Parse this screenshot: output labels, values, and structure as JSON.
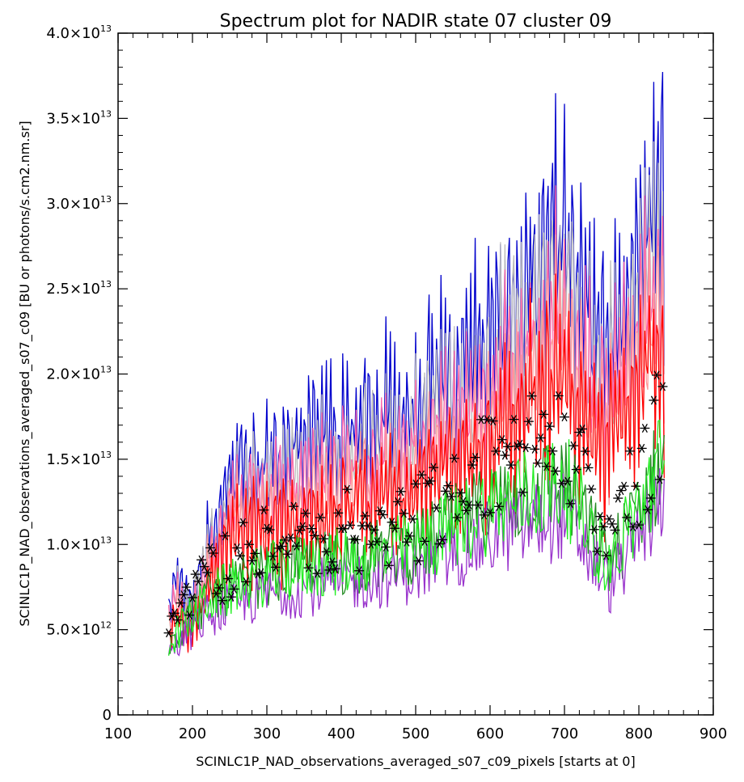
{
  "chart_data": {
    "type": "line",
    "title": "Spectrum plot for NADIR state 07 cluster 09",
    "xlabel": "SCINLC1P_NAD_observations_averaged_s07_c09_pixels [starts at 0]",
    "ylabel": "SCINLC1P_NAD_observations_averaged_s07_c09 [BU or photons/s.cm2.nm.sr]",
    "xlim": [
      100,
      900
    ],
    "ylim": [
      0,
      40000000000000.0
    ],
    "x_ticks": [
      100,
      200,
      300,
      400,
      500,
      600,
      700,
      800,
      900
    ],
    "x_tick_labels": [
      "100",
      "200",
      "300",
      "400",
      "500",
      "600",
      "700",
      "800",
      "900"
    ],
    "y_ticks": [
      0,
      5000000000000.0,
      10000000000000.0,
      15000000000000.0,
      20000000000000.0,
      25000000000000.0,
      30000000000000.0,
      35000000000000.0,
      40000000000000.0
    ],
    "y_tick_labels": [
      {
        "mantissa": "0",
        "exp": ""
      },
      {
        "mantissa": "5.0×10",
        "exp": "12"
      },
      {
        "mantissa": "1.0×10",
        "exp": "13"
      },
      {
        "mantissa": "1.5×10",
        "exp": "13"
      },
      {
        "mantissa": "2.0×10",
        "exp": "13"
      },
      {
        "mantissa": "2.5×10",
        "exp": "13"
      },
      {
        "mantissa": "3.0×10",
        "exp": "13"
      },
      {
        "mantissa": "3.5×10",
        "exp": "13"
      },
      {
        "mantissa": "4.0×10",
        "exp": "13"
      }
    ],
    "x_range_of_data": [
      168,
      835
    ],
    "envelope_x": [
      170,
      180,
      190,
      200,
      210,
      220,
      230,
      250,
      260,
      300,
      350,
      400,
      450,
      500,
      520,
      550,
      600,
      650,
      700,
      720,
      750,
      780,
      800,
      830
    ],
    "envelope_y": [
      8000000000000.0,
      10500000000000.0,
      8000000000000.0,
      9000000000000.0,
      10500000000000.0,
      12500000000000.0,
      15000000000000.0,
      17500000000000.0,
      19000000000000.0,
      19000000000000.0,
      20000000000000.0,
      21000000000000.0,
      22000000000000.0,
      23000000000000.0,
      25000000000000.0,
      25000000000000.0,
      28000000000000.0,
      31500000000000.0,
      36000000000000.0,
      31000000000000.0,
      27000000000000.0,
      30000000000000.0,
      34000000000000.0,
      37500000000000.0
    ],
    "series": [
      {
        "color": "#0000cc",
        "style": "line",
        "scale": 1.0
      },
      {
        "color": "#bbbbbb",
        "style": "line",
        "scale": 0.9
      },
      {
        "color": "#ff66aa",
        "style": "line",
        "scale": 0.85
      },
      {
        "color": "#ff9999",
        "style": "line",
        "scale": 0.78
      },
      {
        "color": "#ff0000",
        "style": "line",
        "scale": 0.72
      },
      {
        "color": "#228B22",
        "style": "line",
        "scale": 0.42
      },
      {
        "color": "#9933cc",
        "style": "line",
        "scale": 0.36
      },
      {
        "color": "#22ee22",
        "style": "line",
        "scale": 0.42
      },
      {
        "color": "#000000",
        "style": "asterisk",
        "scale": 0.5
      }
    ]
  }
}
